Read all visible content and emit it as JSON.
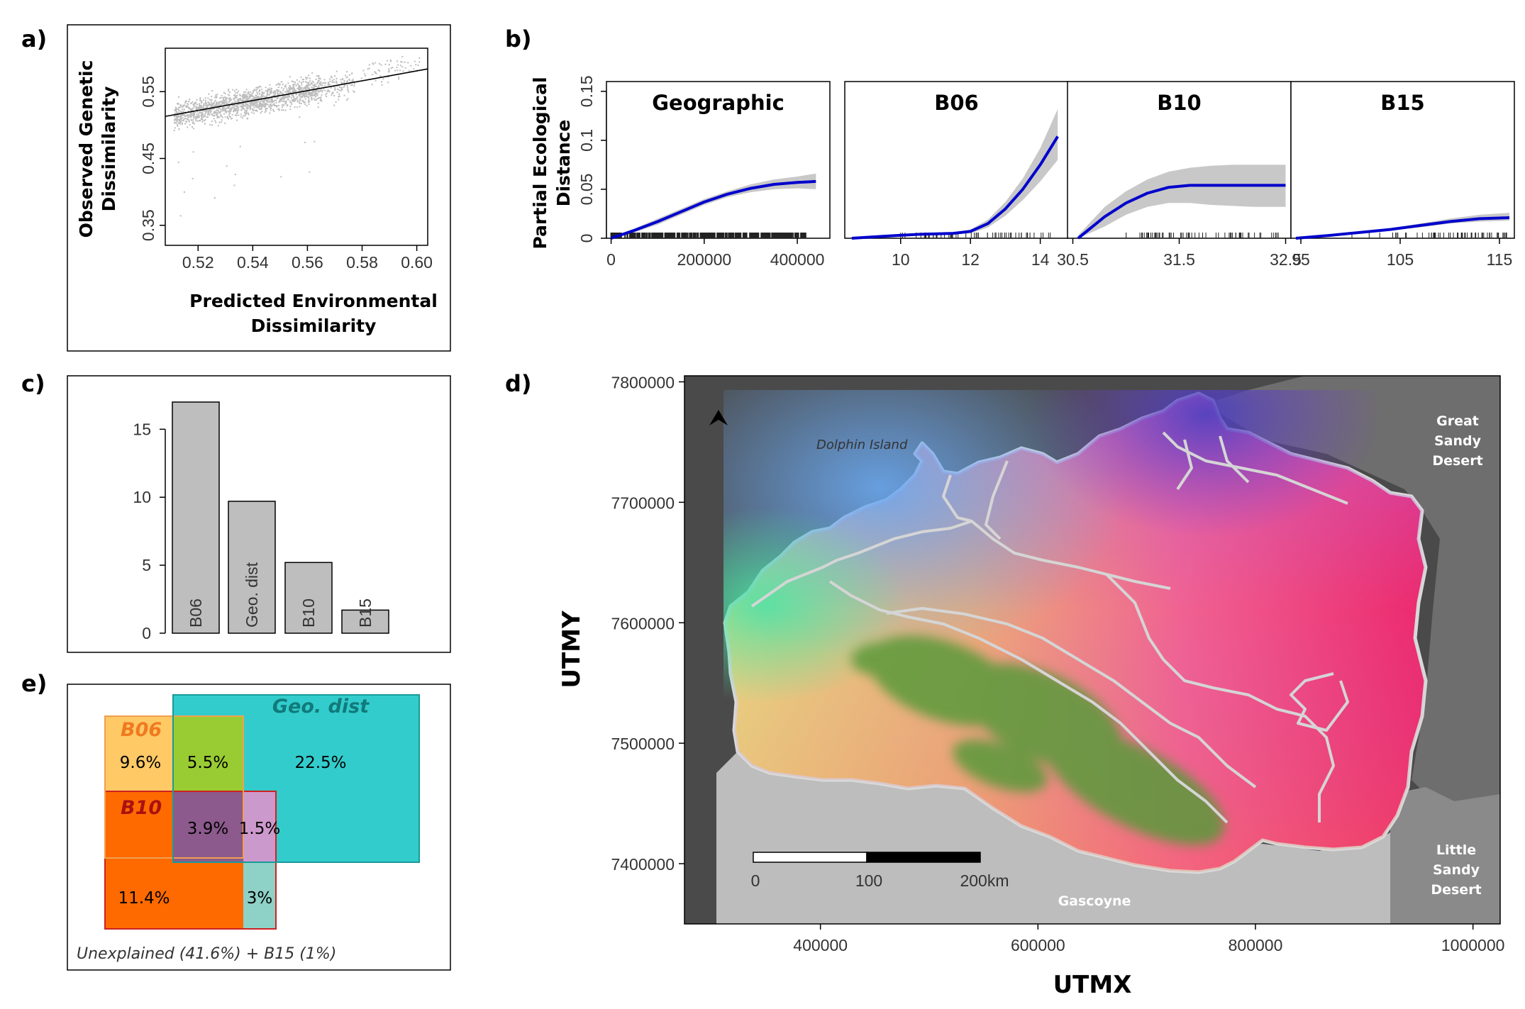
{
  "panel_labels": [
    "a)",
    "b)",
    "c)",
    "d)",
    "e)"
  ],
  "chart_data": [
    {
      "panel": "a",
      "type": "scatter",
      "xlabel": "Predicted Environmental Dissimilarity",
      "xlabel_lines": [
        "Predicted Environmental",
        "Dissimilarity"
      ],
      "ylabel": "Observed Genetic Dissimilarity",
      "ylabel_lines": [
        "Observed Genetic",
        "Dissimilarity"
      ],
      "xlim": [
        0.508,
        0.604
      ],
      "ylim": [
        0.32,
        0.615
      ],
      "xticks": [
        "0.52",
        "0.54",
        "0.56",
        "0.58",
        "0.60"
      ],
      "xtick_values": [
        0.52,
        0.54,
        0.56,
        0.58,
        0.6
      ],
      "yticks": [
        "0.35",
        "0.45",
        "0.55"
      ],
      "ytick_values": [
        0.35,
        0.45,
        0.55
      ],
      "fit_line": {
        "x": [
          0.508,
          0.604
        ],
        "y": [
          0.513,
          0.584
        ]
      },
      "point_color": "#bdbdbd"
    },
    {
      "panel": "b",
      "type": "line",
      "ylabel": "Partial Ecological Distance",
      "ylabel_lines": [
        "Partial Ecological",
        "Distance"
      ],
      "ylim": [
        0,
        0.16
      ],
      "yticks": [
        "0",
        "0.05",
        "0.1",
        "0.15"
      ],
      "ytick_values": [
        0,
        0.05,
        0.1,
        0.15
      ],
      "line_color": "#0000cc",
      "band_color": "#c8c8c8",
      "series": [
        {
          "name": "Geographic",
          "xlim": [
            -10000,
            470000
          ],
          "xticks": [
            "0",
            "200000",
            "400000"
          ],
          "xtick_values": [
            0,
            200000,
            400000
          ],
          "x": [
            0,
            50000,
            100000,
            150000,
            200000,
            250000,
            300000,
            350000,
            400000,
            440000
          ],
          "y": [
            0,
            0.008,
            0.017,
            0.027,
            0.037,
            0.045,
            0.051,
            0.055,
            0.057,
            0.058
          ],
          "lower": [
            0,
            0.006,
            0.014,
            0.024,
            0.034,
            0.042,
            0.047,
            0.05,
            0.051,
            0.05
          ],
          "upper": [
            0.001,
            0.01,
            0.02,
            0.03,
            0.04,
            0.048,
            0.055,
            0.06,
            0.063,
            0.066
          ]
        },
        {
          "name": "B06",
          "xlim": [
            8.4,
            14.8
          ],
          "xticks": [
            "10",
            "12",
            "14"
          ],
          "xtick_values": [
            10,
            12,
            14
          ],
          "x": [
            8.6,
            9.5,
            10.5,
            11.5,
            12.0,
            12.5,
            13.0,
            13.5,
            14.0,
            14.5
          ],
          "y": [
            0.0,
            0.002,
            0.004,
            0.005,
            0.007,
            0.015,
            0.03,
            0.05,
            0.075,
            0.104
          ],
          "lower": [
            0.0,
            0.001,
            0.003,
            0.004,
            0.005,
            0.011,
            0.023,
            0.039,
            0.058,
            0.08
          ],
          "upper": [
            0.001,
            0.003,
            0.005,
            0.006,
            0.009,
            0.019,
            0.037,
            0.061,
            0.092,
            0.132
          ]
        },
        {
          "name": "B10",
          "xlim": [
            30.45,
            32.55
          ],
          "xticks": [
            "30.5",
            "31.5",
            "32.5"
          ],
          "xtick_values": [
            30.5,
            31.5,
            32.5
          ],
          "x": [
            30.55,
            30.8,
            31.0,
            31.2,
            31.4,
            31.6,
            31.8,
            32.0,
            32.2,
            32.5
          ],
          "y": [
            0,
            0.022,
            0.036,
            0.046,
            0.052,
            0.054,
            0.054,
            0.054,
            0.054,
            0.054
          ],
          "lower": [
            0,
            0.012,
            0.024,
            0.032,
            0.036,
            0.036,
            0.034,
            0.033,
            0.032,
            0.032
          ],
          "upper": [
            0.003,
            0.032,
            0.048,
            0.06,
            0.068,
            0.072,
            0.074,
            0.075,
            0.075,
            0.075
          ]
        },
        {
          "name": "B15",
          "xlim": [
            94,
            116.5
          ],
          "xticks": [
            "95",
            "105",
            "115"
          ],
          "xtick_values": [
            95,
            105,
            115
          ],
          "x": [
            94.5,
            98,
            101,
            104,
            107,
            110,
            113,
            116
          ],
          "y": [
            0,
            0.003,
            0.006,
            0.009,
            0.013,
            0.017,
            0.02,
            0.021
          ],
          "lower": [
            0,
            0.002,
            0.005,
            0.008,
            0.011,
            0.015,
            0.017,
            0.018
          ],
          "upper": [
            0.001,
            0.004,
            0.007,
            0.01,
            0.015,
            0.02,
            0.024,
            0.026
          ]
        }
      ]
    },
    {
      "panel": "c",
      "type": "bar",
      "categories": [
        "B06",
        "Geo. dist",
        "B10",
        "B15"
      ],
      "values": [
        17.0,
        9.7,
        5.2,
        1.7
      ],
      "ylim": [
        0,
        18.2
      ],
      "yticks": [
        "0",
        "5",
        "10",
        "15"
      ],
      "ytick_values": [
        0,
        5,
        10,
        15
      ],
      "bar_color": "#bebebe"
    },
    {
      "panel": "d",
      "type": "map",
      "xlabel": "UTMX",
      "ylabel": "UTMY",
      "xlim": [
        275000,
        1025000
      ],
      "ylim": [
        7350000,
        7805000
      ],
      "xticks": [
        "400000",
        "600000",
        "800000",
        "1000000"
      ],
      "xtick_values": [
        400000,
        600000,
        800000,
        1000000
      ],
      "yticks": [
        "7400000",
        "7500000",
        "7600000",
        "7700000",
        "7800000"
      ],
      "ytick_values": [
        7400000,
        7500000,
        7600000,
        7700000,
        7800000
      ],
      "annotations": {
        "dolphin_island": "Dolphin Island",
        "great_sandy_desert": [
          "Great",
          "Sandy",
          "Desert"
        ],
        "little_sandy_desert": [
          "Little",
          "Sandy",
          "Desert"
        ],
        "gascoyne": "Gascoyne"
      },
      "scale_bar": [
        "0",
        "100",
        "200km"
      ]
    },
    {
      "panel": "e",
      "type": "venn",
      "sets": {
        "b06": "B06",
        "b10": "B10",
        "geo": "Geo. dist"
      },
      "values": {
        "b06_only": "9.6%",
        "b06_geo": "5.5%",
        "geo_only": "22.5%",
        "all_three": "3.9%",
        "b10_geo": "1.5%",
        "b10_only": "11.4%",
        "b10_geo_low": "3%"
      },
      "footer": "Unexplained (41.6%) + B15 (1%)",
      "colors": {
        "b06": "#ffc966",
        "b10": "#ff6a00",
        "geo": "#33cccc",
        "b06_geo": "#99cc33",
        "all": "#8c5a8c",
        "b10_geo": "#cc99cc",
        "b10_geo_low": "#8ed1c6"
      }
    }
  ]
}
